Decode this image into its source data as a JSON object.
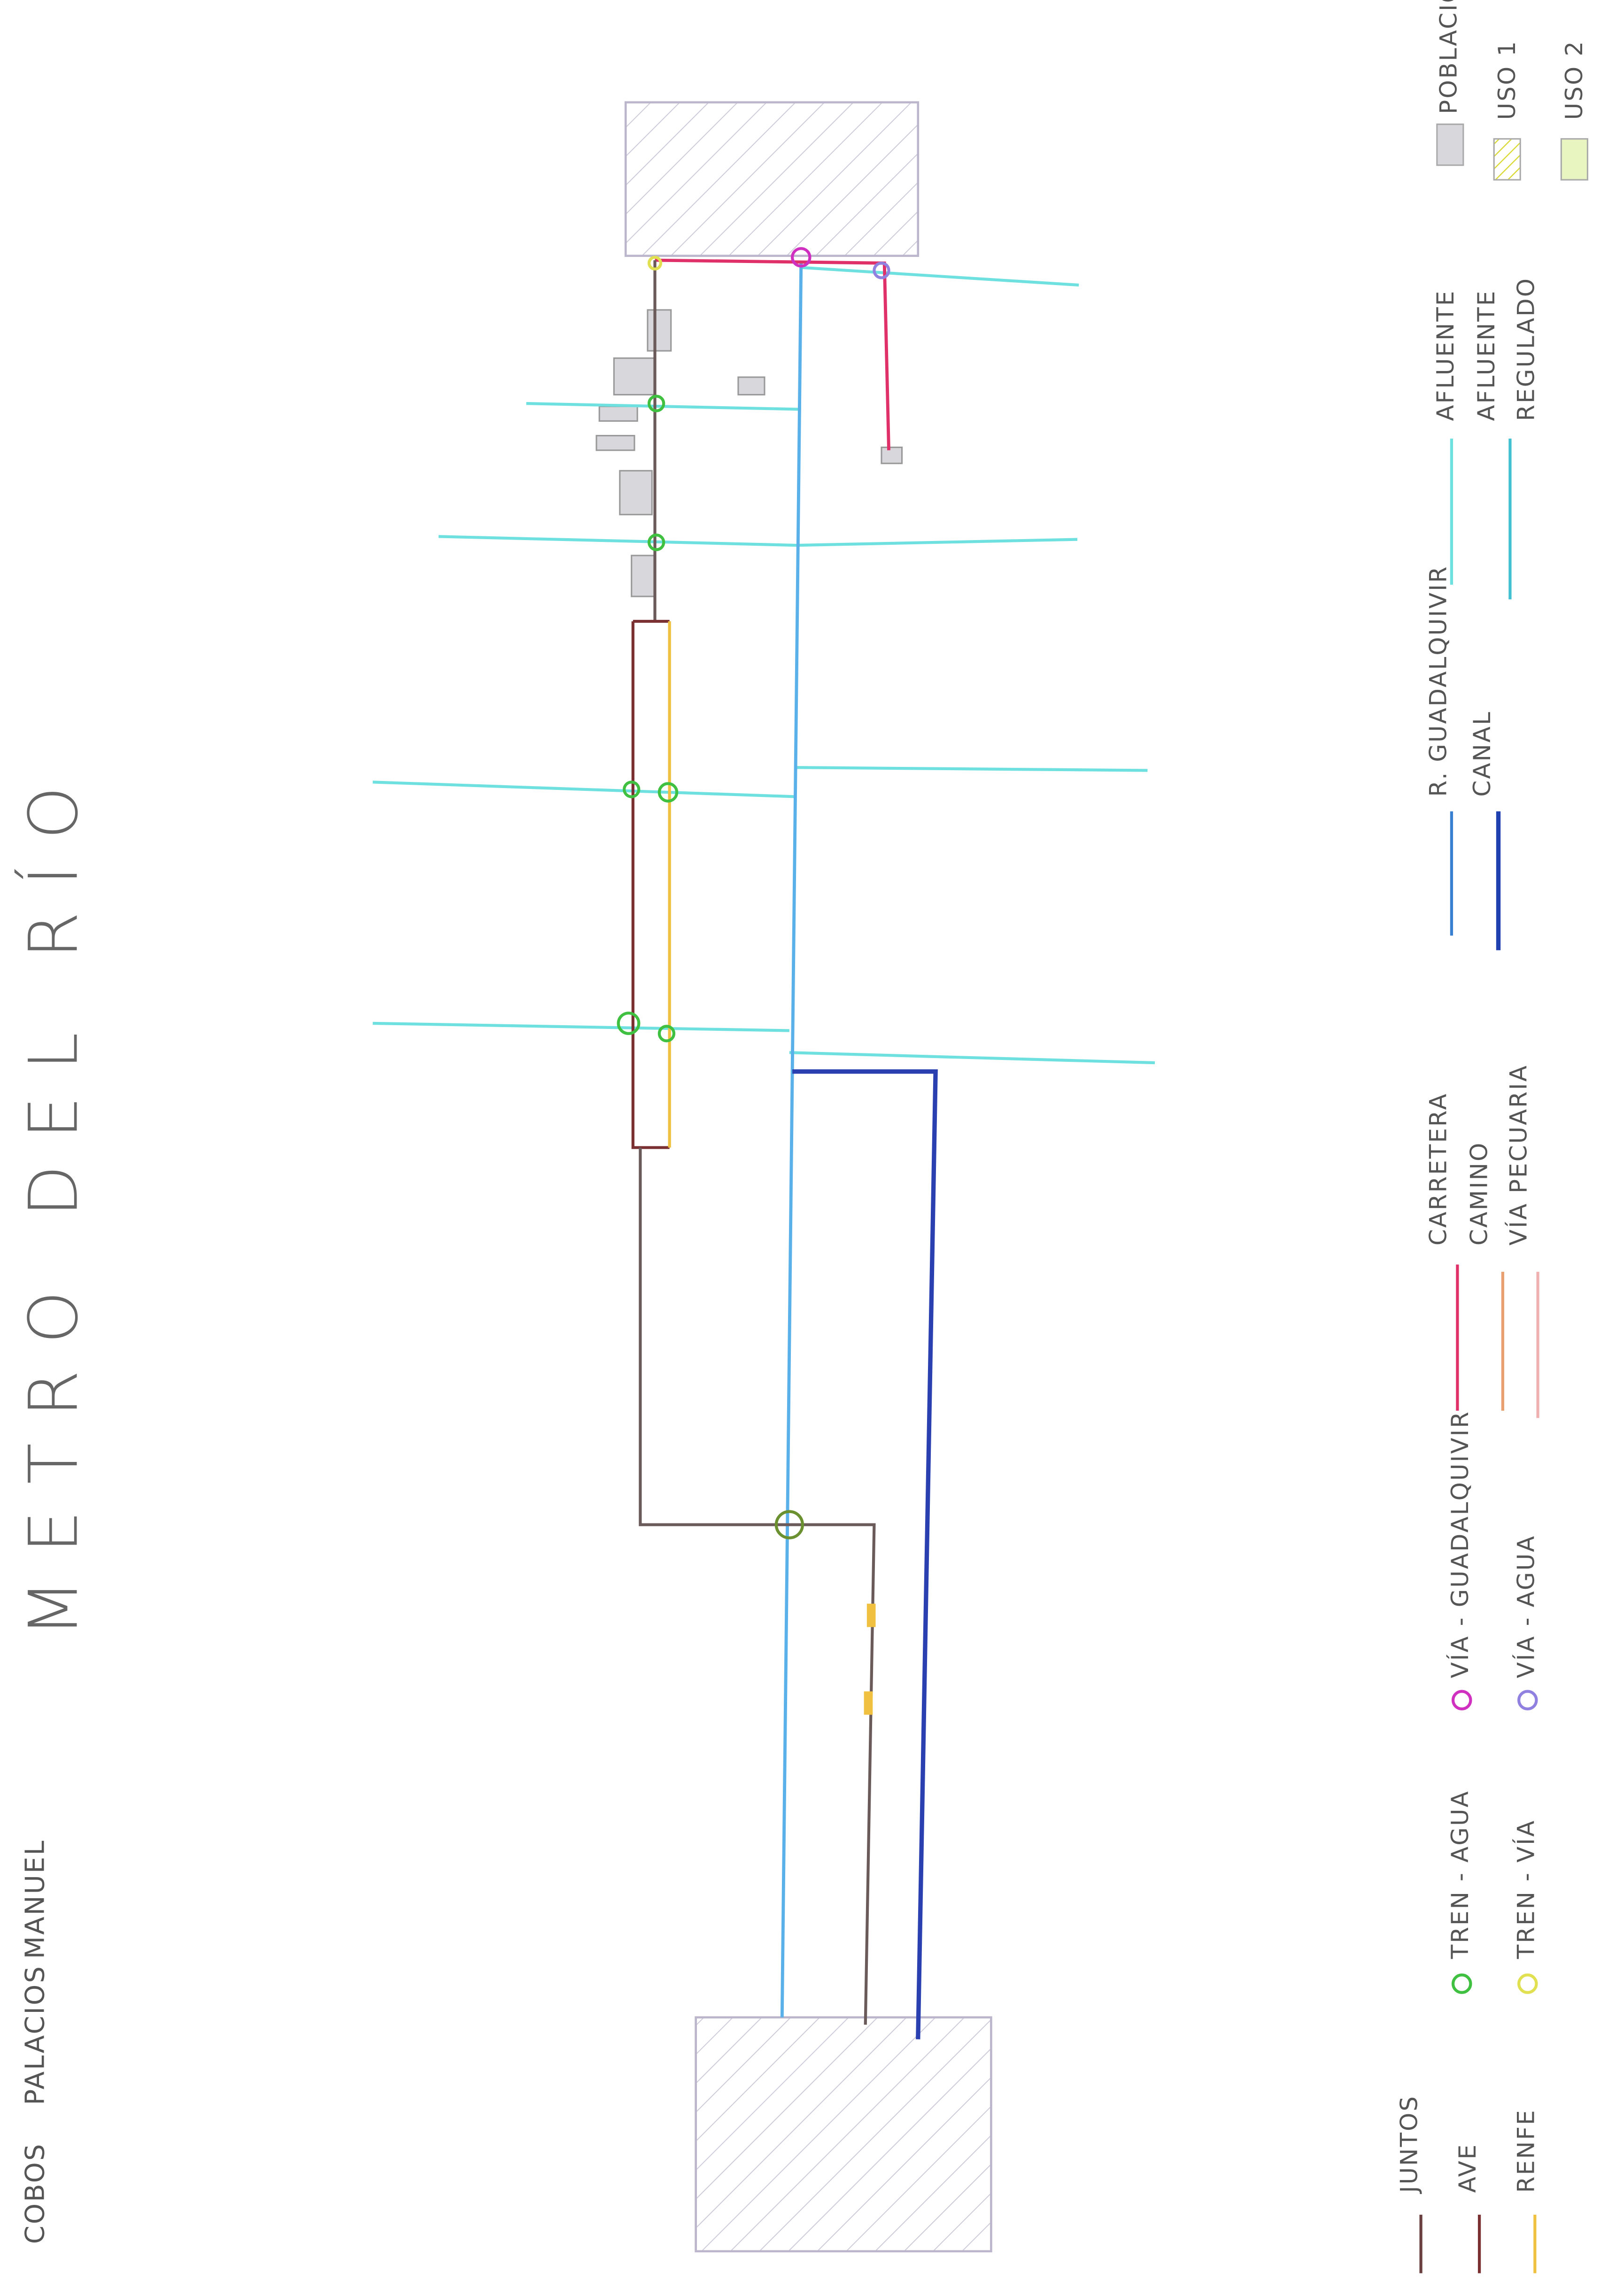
{
  "title": "METRO DEL RÍO",
  "author": [
    "COBOS",
    "PALACIOS",
    "MANUEL"
  ],
  "legend": [
    {
      "label": [
        "JUNTOS"
      ]
    },
    {
      "label": [
        "AVE"
      ]
    },
    {
      "label": [
        "RENFE"
      ]
    },
    {
      "label": [
        "TREN - AGUA"
      ]
    },
    {
      "label": [
        "TREN - VÍA"
      ]
    },
    {
      "label": [
        "VÍA - GUADALQUIVIR"
      ]
    },
    {
      "label": [
        "VÍA - AGUA"
      ]
    },
    {
      "label": [
        "CARRETERA"
      ]
    },
    {
      "label": [
        "CAMINO"
      ]
    },
    {
      "label": [
        "VÍA PECUARIA"
      ]
    },
    {
      "label": [
        "R. GUADALQUIVIR"
      ]
    },
    {
      "label": [
        "CANAL"
      ]
    },
    {
      "label": [
        "AFLUENTE"
      ]
    },
    {
      "label": [
        "AFLUENTE",
        "REGULADO"
      ]
    },
    {
      "label": [
        "POBLACIÓN"
      ]
    },
    {
      "label": [
        "USO 1"
      ]
    },
    {
      "label": [
        "USO 2"
      ]
    }
  ]
}
